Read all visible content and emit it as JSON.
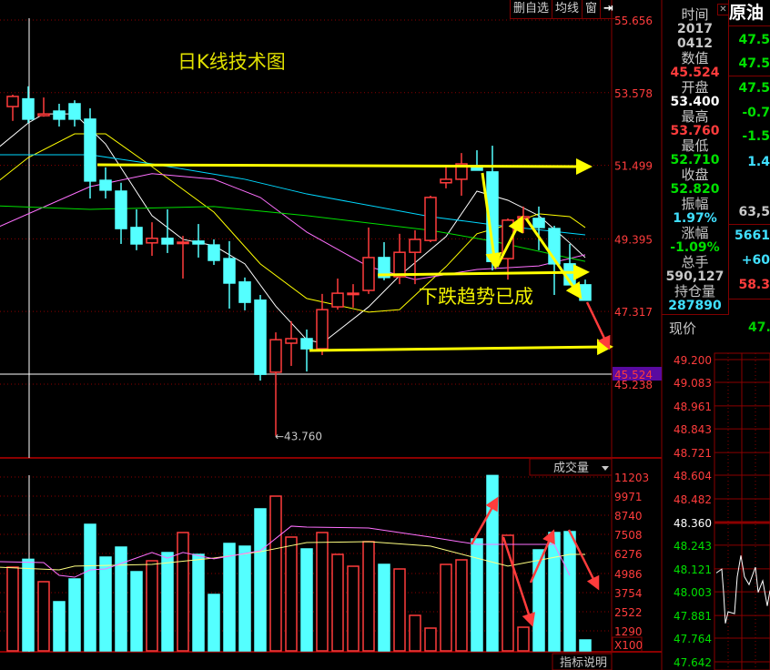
{
  "toolbar": {
    "remove_watch": "删自选",
    "ma": "均线",
    "window": "窗",
    "exit_icon": "exit-arrow-icon"
  },
  "titles": {
    "chart_title": "日K线技术图",
    "annotation": "下跌趋势已成",
    "low_marker": "←43.760"
  },
  "volume_panel": {
    "indicator": "成交量",
    "unit": "X100",
    "help": "指标说明"
  },
  "info": {
    "rows": [
      {
        "label": "时间"
      },
      {
        "value": "2017",
        "color": "#c8c8c8"
      },
      {
        "value": "0412",
        "color": "#c8c8c8"
      },
      {
        "label": "数值"
      },
      {
        "value": "45.524",
        "color": "#ff3c3c"
      },
      {
        "label": "开盘"
      },
      {
        "value": "53.400",
        "color": "#ffffff"
      },
      {
        "label": "最高"
      },
      {
        "value": "53.760",
        "color": "#ff3c3c"
      },
      {
        "label": "最低"
      },
      {
        "value": "52.710",
        "color": "#00e000"
      },
      {
        "label": "收盘"
      },
      {
        "value": "52.820",
        "color": "#00e000"
      },
      {
        "label": "振幅"
      },
      {
        "value": "1.97%",
        "color": "#40e0ff"
      },
      {
        "label": "涨幅"
      },
      {
        "value": "-1.09%",
        "color": "#00e000"
      },
      {
        "label": "总手"
      },
      {
        "value": "590,127",
        "color": "#c8c8c8"
      },
      {
        "label": "持仓量"
      },
      {
        "value": "287890",
        "color": "#40e0ff"
      }
    ]
  },
  "side": {
    "title": "原油",
    "items": [
      {
        "text": "47.5",
        "color": "#00e000"
      },
      {
        "text": "47.5",
        "color": "#00e000"
      },
      {
        "text": "47.5",
        "color": "#00e000"
      },
      {
        "text": "-0.7",
        "color": "#00e000"
      },
      {
        "text": "-1.5",
        "color": "#00e000"
      },
      {
        "text": "1.4",
        "color": "#40e0ff"
      },
      {
        "text": "63,5",
        "color": "#c8c8c8"
      },
      {
        "text": "5661",
        "color": "#40e0ff"
      },
      {
        "text": "+60",
        "color": "#40e0ff"
      },
      {
        "text": "58.3",
        "color": "#ff3c3c"
      }
    ],
    "now_label": "现价",
    "now_value": "47.5"
  },
  "colors": {
    "up": "#ff3c3c",
    "down": "#54ffff",
    "grid": "#8b0000",
    "axis_text": "#ff3c3c",
    "annotation": "#ffff00",
    "arrow_red": "#ff3c3c",
    "current_price_bg": "#5a0aa0"
  },
  "chart_data": [
    {
      "type": "candlestick",
      "title": "日K线技术图",
      "y_ticks": [
        "55.656",
        "53.578",
        "51.499",
        "49.395",
        "47.317",
        "45.238"
      ],
      "ylim": [
        45.238,
        55.656
      ],
      "current_price": "45.524",
      "low_label": "43.760",
      "grid": true,
      "ohlc": [
        [
          53.18,
          53.52,
          52.77,
          53.47
        ],
        [
          53.4,
          53.76,
          52.71,
          52.82
        ],
        [
          52.92,
          53.44,
          52.89,
          52.97
        ],
        [
          53.05,
          53.26,
          52.61,
          52.82
        ],
        [
          53.26,
          53.36,
          52.61,
          52.82
        ],
        [
          52.82,
          53.13,
          50.55,
          51.05
        ],
        [
          51.07,
          51.44,
          50.55,
          50.79
        ],
        [
          50.76,
          51.0,
          49.25,
          49.69
        ],
        [
          49.72,
          50.24,
          49.07,
          49.25
        ],
        [
          49.28,
          49.87,
          48.91,
          49.41
        ],
        [
          49.41,
          50.24,
          48.99,
          49.25
        ],
        [
          49.28,
          49.48,
          48.26,
          49.3
        ],
        [
          49.33,
          49.82,
          48.86,
          49.25
        ],
        [
          49.22,
          49.38,
          48.65,
          48.78
        ],
        [
          48.83,
          49.33,
          47.4,
          48.13
        ],
        [
          48.16,
          48.29,
          47.35,
          47.58
        ],
        [
          47.64,
          47.79,
          45.34,
          45.52
        ],
        [
          45.58,
          46.72,
          43.76,
          46.51
        ],
        [
          46.41,
          47.04,
          45.76,
          46.54
        ],
        [
          46.54,
          46.8,
          45.6,
          46.25
        ],
        [
          46.25,
          47.82,
          46.07,
          47.37
        ],
        [
          47.45,
          48.26,
          47.37,
          47.84
        ],
        [
          47.82,
          48.1,
          47.43,
          47.84
        ],
        [
          47.92,
          49.72,
          47.82,
          48.86
        ],
        [
          48.86,
          49.3,
          48.21,
          48.29
        ],
        [
          48.31,
          49.54,
          48.1,
          49.01
        ],
        [
          49.01,
          49.64,
          48.1,
          49.38
        ],
        [
          49.35,
          50.63,
          49.3,
          50.58
        ],
        [
          51.0,
          51.46,
          50.84,
          51.1
        ],
        [
          51.1,
          51.85,
          50.63,
          51.54
        ],
        [
          51.49,
          51.93,
          51.36,
          51.36
        ],
        [
          51.31,
          52.06,
          48.49,
          48.75
        ],
        [
          48.83,
          49.98,
          48.23,
          49.93
        ],
        [
          49.98,
          50.32,
          49.56,
          50.03
        ],
        [
          49.98,
          50.32,
          49.07,
          49.72
        ],
        [
          49.69,
          49.77,
          47.79,
          48.68
        ],
        [
          48.68,
          49.25,
          48.08,
          48.08
        ],
        [
          48.08,
          48.23,
          47.64,
          47.64
        ]
      ],
      "moving_averages": [
        {
          "color": "#ffffff",
          "points": [
            [
              -1,
              51.98
            ],
            [
              1,
              52.71
            ],
            [
              2,
              52.97
            ],
            [
              4,
              52.97
            ],
            [
              6,
              52.11
            ],
            [
              9,
              50.06
            ],
            [
              11,
              49.38
            ],
            [
              13,
              49.2
            ],
            [
              15,
              48.68
            ],
            [
              17,
              47.47
            ],
            [
              19,
              46.51
            ],
            [
              20,
              46.41
            ],
            [
              23,
              47.45
            ],
            [
              25,
              48.34
            ],
            [
              28,
              49.46
            ],
            [
              30,
              50.76
            ],
            [
              32,
              50.5
            ],
            [
              34,
              50.06
            ],
            [
              36,
              49.28
            ],
            [
              37,
              48.86
            ]
          ]
        },
        {
          "color": "#ffff00",
          "points": [
            [
              -1,
              51.02
            ],
            [
              1,
              51.72
            ],
            [
              4,
              52.4
            ],
            [
              6,
              52.4
            ],
            [
              9,
              51.46
            ],
            [
              13,
              50.16
            ],
            [
              16,
              48.68
            ],
            [
              19,
              47.69
            ],
            [
              23,
              47.3
            ],
            [
              25,
              47.37
            ],
            [
              28,
              48.6
            ],
            [
              30,
              49.54
            ],
            [
              32,
              49.8
            ],
            [
              34,
              50.11
            ],
            [
              36,
              50.03
            ],
            [
              37,
              49.72
            ]
          ]
        },
        {
          "color": "#00d8ff",
          "points": [
            [
              -1,
              51.8
            ],
            [
              5,
              51.8
            ],
            [
              9,
              51.54
            ],
            [
              15,
              51.1
            ],
            [
              19,
              50.68
            ],
            [
              27,
              50.03
            ],
            [
              31,
              49.8
            ],
            [
              37,
              49.51
            ]
          ]
        },
        {
          "color": "#ff70ff",
          "points": [
            [
              -1,
              49.72
            ],
            [
              5,
              50.89
            ],
            [
              9,
              51.26
            ],
            [
              13,
              51.1
            ],
            [
              16,
              50.58
            ],
            [
              19,
              49.59
            ],
            [
              23,
              48.6
            ],
            [
              26,
              48.23
            ],
            [
              30,
              48.52
            ],
            [
              34,
              48.62
            ],
            [
              37,
              48.94
            ]
          ]
        },
        {
          "color": "#00e000",
          "points": [
            [
              -1,
              50.34
            ],
            [
              5,
              50.24
            ],
            [
              13,
              50.32
            ],
            [
              19,
              50.06
            ],
            [
              27,
              49.64
            ],
            [
              31,
              49.33
            ],
            [
              37,
              48.75
            ]
          ]
        }
      ]
    },
    {
      "type": "bar",
      "title": "成交量",
      "unit": "X100",
      "y_ticks": [
        "11203",
        "9971",
        "8740",
        "7508",
        "6276",
        "4986",
        "3754",
        "2522",
        "1290"
      ],
      "values": [
        5397,
        5901,
        4458,
        3168,
        4634,
        8154,
        6042,
        6687,
        5103,
        5807,
        6335,
        7626,
        6218,
        3637,
        6922,
        6746,
        9151,
        9972,
        7333,
        6570,
        7626,
        6218,
        5455,
        7039,
        5573,
        5279,
        2288,
        1467,
        5573,
        5866,
        7215,
        11300,
        7450,
        1525,
        6511,
        7626,
        7684,
        704
      ],
      "moving_averages": [
        {
          "color": "#ffff80",
          "points": [
            [
              -1,
              5400
            ],
            [
              3,
              5220
            ],
            [
              4,
              5460
            ],
            [
              9,
              5570
            ],
            [
              13,
              5980
            ],
            [
              16,
              6390
            ],
            [
              19,
              6980
            ],
            [
              23,
              7040
            ],
            [
              27,
              6750
            ],
            [
              32,
              5460
            ],
            [
              36,
              6220
            ],
            [
              37,
              6220
            ]
          ]
        },
        {
          "color": "#ff70ff",
          "points": [
            [
              -1,
              5750
            ],
            [
              2,
              5690
            ],
            [
              3,
              4870
            ],
            [
              4,
              4750
            ],
            [
              5,
              5220
            ],
            [
              6,
              5280
            ],
            [
              9,
              6340
            ],
            [
              10,
              5980
            ],
            [
              11,
              6340
            ],
            [
              13,
              5930
            ],
            [
              16,
              6450
            ],
            [
              18,
              8040
            ],
            [
              19,
              7980
            ],
            [
              23,
              7920
            ],
            [
              27,
              7330
            ],
            [
              30,
              6860
            ],
            [
              35,
              6860
            ],
            [
              36,
              4870
            ]
          ]
        }
      ]
    },
    {
      "type": "line",
      "y_ticks": [
        "49.200",
        "49.083",
        "48.961",
        "48.843",
        "48.721",
        "48.604",
        "48.482",
        "48.360",
        "48.243",
        "48.121",
        "48.003",
        "47.881",
        "47.764",
        "47.642"
      ],
      "reference_price": "48.360",
      "values": [
        48.1,
        48.12,
        48.0,
        47.84,
        47.9,
        47.89,
        48.08,
        48.19,
        48.08,
        48.04,
        48.13,
        48.0,
        48.06,
        47.93,
        48.01
      ]
    }
  ]
}
